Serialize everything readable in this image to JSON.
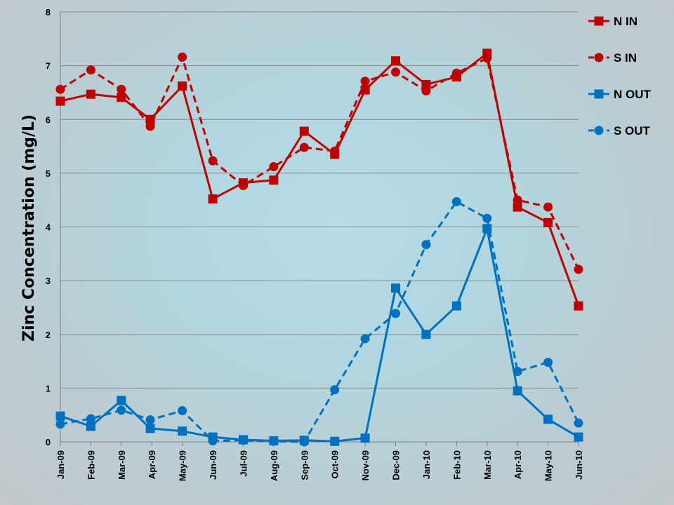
{
  "chart_data": {
    "type": "line",
    "title": "",
    "xlabel": "",
    "ylabel": "Zinc Concentration (mg/L)",
    "ylim": [
      0,
      8
    ],
    "yticks": [
      "0",
      "1",
      "2",
      "3",
      "4",
      "5",
      "6",
      "7",
      "8"
    ],
    "grid": "horizontal",
    "legend": "right",
    "categories": [
      "Jan-09",
      "Feb-09",
      "Mar-09",
      "Apr-09",
      "May-09",
      "Jun-09",
      "Jul-09",
      "Aug-09",
      "Sep-09",
      "Oct-09",
      "Nov-09",
      "Dec-09",
      "Jan-10",
      "Feb-10",
      "Mar-10",
      "Apr-10",
      "May-10",
      "Jun-10"
    ],
    "series": [
      {
        "name": "N IN",
        "color": "#c00000",
        "marker": "square",
        "dash": "solid",
        "x": [
          0,
          1,
          2,
          2.95,
          4,
          5,
          6,
          7,
          8,
          9,
          10,
          11,
          12,
          13,
          14,
          15,
          16,
          17
        ],
        "values": [
          6.34,
          6.47,
          6.41,
          6.0,
          6.62,
          4.52,
          4.82,
          4.87,
          5.78,
          5.35,
          6.55,
          7.09,
          6.65,
          6.79,
          7.23,
          4.37,
          4.08,
          2.53
        ]
      },
      {
        "name": "S IN",
        "color": "#c00000",
        "marker": "circle",
        "dash": "dashed",
        "x": [
          0,
          1,
          2,
          2.95,
          4,
          5,
          6,
          7,
          8,
          9,
          10,
          11,
          12,
          13,
          14,
          15,
          16,
          17
        ],
        "values": [
          6.56,
          6.92,
          6.56,
          5.87,
          7.16,
          5.23,
          4.77,
          5.12,
          5.48,
          5.41,
          6.71,
          6.88,
          6.53,
          6.86,
          7.14,
          4.5,
          4.37,
          3.21
        ]
      },
      {
        "name": "N OUT",
        "color": "#0070c0",
        "marker": "square",
        "dash": "solid",
        "x": [
          0,
          1,
          2,
          2.95,
          4,
          5,
          6,
          7,
          8,
          9,
          10,
          11,
          12,
          13,
          14,
          15,
          16,
          17
        ],
        "values": [
          0.48,
          0.29,
          0.77,
          0.25,
          0.2,
          0.09,
          0.04,
          0.02,
          0.03,
          0.01,
          0.07,
          2.86,
          2.0,
          2.53,
          3.97,
          0.95,
          0.42,
          0.09
        ]
      },
      {
        "name": "S OUT",
        "color": "#0070c0",
        "marker": "circle",
        "dash": "dashed",
        "x": [
          0,
          1,
          2,
          2.95,
          4,
          5,
          6,
          7,
          8,
          9,
          10,
          11,
          12,
          13,
          14,
          15,
          16,
          17
        ],
        "values": [
          0.33,
          0.43,
          0.59,
          0.41,
          0.58,
          0.02,
          0.03,
          0.01,
          0.0,
          0.97,
          1.92,
          2.39,
          3.67,
          4.47,
          4.16,
          1.31,
          1.48,
          0.35
        ]
      }
    ]
  }
}
